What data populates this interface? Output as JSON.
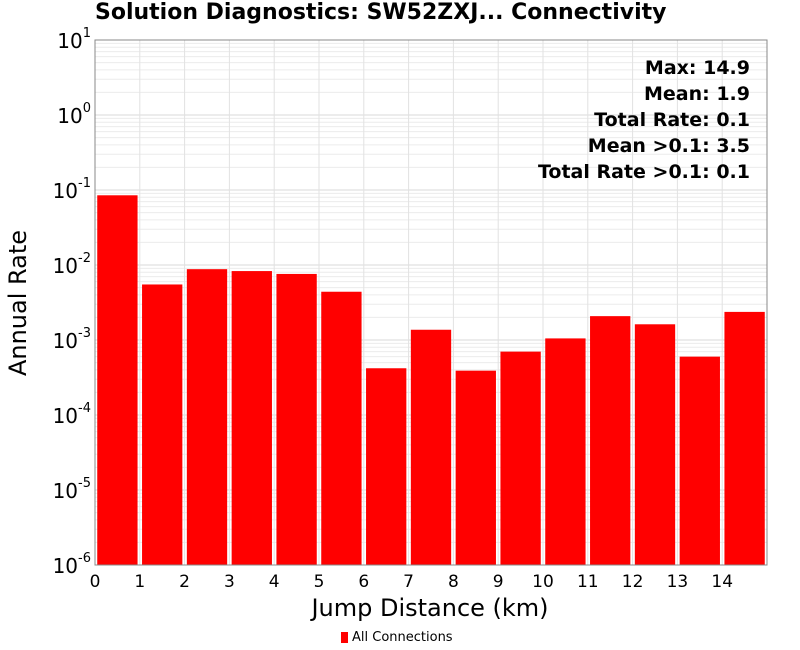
{
  "chart_data": {
    "type": "bar",
    "title": "Solution Diagnostics: SW52ZXJ... Connectivity",
    "xlabel": "Jump Distance (km)",
    "ylabel": "Annual Rate",
    "yscale": "log",
    "ylim": [
      1e-06,
      10
    ],
    "xlim": [
      0,
      15
    ],
    "x_ticks": [
      "0",
      "1",
      "2",
      "3",
      "4",
      "5",
      "6",
      "7",
      "8",
      "9",
      "10",
      "11",
      "12",
      "13",
      "14"
    ],
    "y_ticks": [
      {
        "base": "10",
        "exp": "1"
      },
      {
        "base": "10",
        "exp": "0"
      },
      {
        "base": "10",
        "exp": "-1"
      },
      {
        "base": "10",
        "exp": "-2"
      },
      {
        "base": "10",
        "exp": "-3"
      },
      {
        "base": "10",
        "exp": "-4"
      },
      {
        "base": "10",
        "exp": "-5"
      },
      {
        "base": "10",
        "exp": "-6"
      }
    ],
    "grid": true,
    "legend_position": "bottom-center",
    "bar_color": "#ff0000",
    "series": [
      {
        "name": "All Connections",
        "color": "#ff0000",
        "x": [
          0.5,
          1.5,
          2.5,
          3.5,
          4.5,
          5.5,
          6.5,
          7.5,
          8.5,
          9.5,
          10.5,
          11.5,
          12.5,
          13.5,
          14.5
        ],
        "values": [
          0.085,
          0.0055,
          0.0088,
          0.0083,
          0.0076,
          0.0044,
          0.00042,
          0.00137,
          0.00039,
          0.0007,
          0.00105,
          0.00208,
          0.00162,
          0.0006,
          0.00237
        ]
      }
    ],
    "annotations": [
      "Max: 14.9",
      "Mean: 1.9",
      "Total Rate: 0.1",
      "Mean >0.1: 3.5",
      "Total Rate >0.1: 0.1"
    ]
  }
}
